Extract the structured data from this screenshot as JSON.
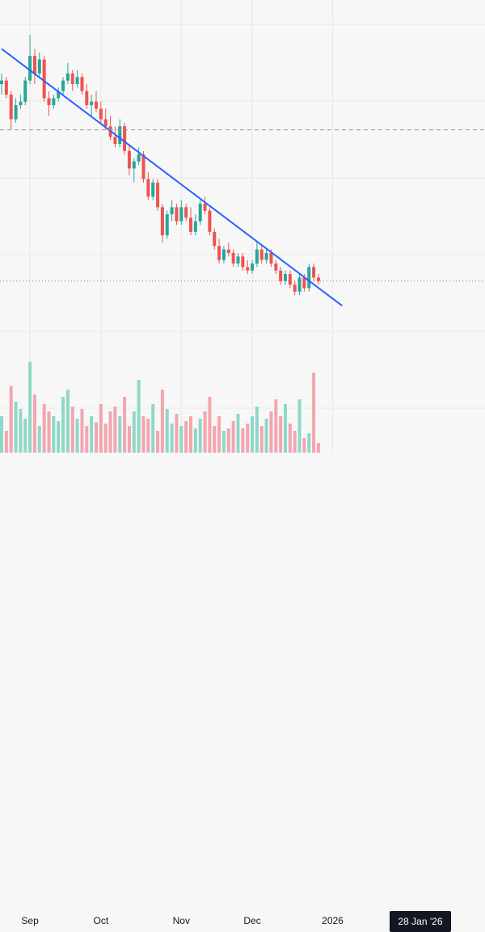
{
  "chart_data": {
    "type": "candlestick",
    "title": "",
    "xlabel": "",
    "ylabel": "",
    "x_ticks": [
      "Sep",
      "Oct",
      "Nov",
      "Dec",
      "2026"
    ],
    "crosshair_date_label": "28 Jan '26",
    "grid": true,
    "series": [
      {
        "name": "",
        "type": "candlestick",
        "ohlc": [
          [
            0.83,
            0.86,
            0.8,
            0.84
          ],
          [
            0.84,
            0.85,
            0.79,
            0.8
          ],
          [
            0.8,
            0.81,
            0.7,
            0.73
          ],
          [
            0.73,
            0.79,
            0.72,
            0.77
          ],
          [
            0.77,
            0.8,
            0.76,
            0.78
          ],
          [
            0.78,
            0.85,
            0.77,
            0.84
          ],
          [
            0.84,
            0.97,
            0.83,
            0.91
          ],
          [
            0.91,
            0.93,
            0.83,
            0.86
          ],
          [
            0.86,
            0.92,
            0.85,
            0.9
          ],
          [
            0.9,
            0.91,
            0.78,
            0.79
          ],
          [
            0.79,
            0.81,
            0.74,
            0.77
          ],
          [
            0.77,
            0.8,
            0.76,
            0.79
          ],
          [
            0.79,
            0.82,
            0.78,
            0.81
          ],
          [
            0.81,
            0.85,
            0.8,
            0.84
          ],
          [
            0.84,
            0.89,
            0.83,
            0.86
          ],
          [
            0.86,
            0.87,
            0.81,
            0.83
          ],
          [
            0.83,
            0.87,
            0.82,
            0.85
          ],
          [
            0.85,
            0.86,
            0.8,
            0.81
          ],
          [
            0.81,
            0.83,
            0.76,
            0.77
          ],
          [
            0.77,
            0.8,
            0.74,
            0.78
          ],
          [
            0.78,
            0.81,
            0.75,
            0.76
          ],
          [
            0.76,
            0.78,
            0.72,
            0.73
          ],
          [
            0.73,
            0.76,
            0.7,
            0.71
          ],
          [
            0.71,
            0.74,
            0.67,
            0.68
          ],
          [
            0.68,
            0.71,
            0.65,
            0.66
          ],
          [
            0.66,
            0.73,
            0.65,
            0.71
          ],
          [
            0.71,
            0.72,
            0.63,
            0.64
          ],
          [
            0.64,
            0.66,
            0.57,
            0.59
          ],
          [
            0.59,
            0.62,
            0.55,
            0.61
          ],
          [
            0.61,
            0.65,
            0.6,
            0.63
          ],
          [
            0.63,
            0.64,
            0.55,
            0.56
          ],
          [
            0.56,
            0.58,
            0.5,
            0.51
          ],
          [
            0.51,
            0.56,
            0.5,
            0.55
          ],
          [
            0.55,
            0.56,
            0.47,
            0.48
          ],
          [
            0.48,
            0.49,
            0.38,
            0.4
          ],
          [
            0.4,
            0.47,
            0.39,
            0.46
          ],
          [
            0.46,
            0.5,
            0.44,
            0.48
          ],
          [
            0.48,
            0.49,
            0.43,
            0.44
          ],
          [
            0.44,
            0.5,
            0.43,
            0.48
          ],
          [
            0.48,
            0.49,
            0.44,
            0.45
          ],
          [
            0.45,
            0.48,
            0.4,
            0.41
          ],
          [
            0.41,
            0.46,
            0.4,
            0.44
          ],
          [
            0.44,
            0.5,
            0.43,
            0.49
          ],
          [
            0.49,
            0.51,
            0.46,
            0.47
          ],
          [
            0.47,
            0.48,
            0.4,
            0.41
          ],
          [
            0.41,
            0.42,
            0.36,
            0.37
          ],
          [
            0.37,
            0.39,
            0.32,
            0.33
          ],
          [
            0.33,
            0.37,
            0.32,
            0.36
          ],
          [
            0.36,
            0.38,
            0.34,
            0.35
          ],
          [
            0.35,
            0.36,
            0.31,
            0.32
          ],
          [
            0.32,
            0.35,
            0.31,
            0.34
          ],
          [
            0.34,
            0.35,
            0.3,
            0.31
          ],
          [
            0.31,
            0.33,
            0.29,
            0.3
          ],
          [
            0.3,
            0.33,
            0.29,
            0.32
          ],
          [
            0.32,
            0.38,
            0.31,
            0.36
          ],
          [
            0.36,
            0.37,
            0.32,
            0.33
          ],
          [
            0.33,
            0.36,
            0.32,
            0.35
          ],
          [
            0.35,
            0.36,
            0.31,
            0.32
          ],
          [
            0.32,
            0.33,
            0.29,
            0.3
          ],
          [
            0.3,
            0.31,
            0.26,
            0.27
          ],
          [
            0.27,
            0.3,
            0.26,
            0.29
          ],
          [
            0.29,
            0.3,
            0.25,
            0.26
          ],
          [
            0.26,
            0.27,
            0.23,
            0.24
          ],
          [
            0.24,
            0.29,
            0.23,
            0.28
          ],
          [
            0.28,
            0.29,
            0.24,
            0.25
          ],
          [
            0.25,
            0.32,
            0.24,
            0.31
          ],
          [
            0.31,
            0.32,
            0.27,
            0.28
          ],
          [
            0.28,
            0.29,
            0.26,
            0.27
          ]
        ]
      }
    ],
    "volumes": [
      0.3,
      0.18,
      0.55,
      0.42,
      0.36,
      0.28,
      0.75,
      0.48,
      0.22,
      0.4,
      0.34,
      0.3,
      0.26,
      0.46,
      0.52,
      0.38,
      0.28,
      0.36,
      0.22,
      0.3,
      0.25,
      0.4,
      0.24,
      0.34,
      0.38,
      0.3,
      0.46,
      0.22,
      0.34,
      0.6,
      0.3,
      0.28,
      0.4,
      0.18,
      0.52,
      0.36,
      0.24,
      0.32,
      0.22,
      0.26,
      0.3,
      0.2,
      0.28,
      0.34,
      0.46,
      0.22,
      0.3,
      0.18,
      0.2,
      0.26,
      0.32,
      0.2,
      0.24,
      0.3,
      0.38,
      0.22,
      0.28,
      0.34,
      0.44,
      0.3,
      0.4,
      0.24,
      0.18,
      0.44,
      0.12,
      0.16,
      0.66,
      0.08
    ],
    "trendline": {
      "from": [
        0,
        0.93
      ],
      "to": [
        72,
        0.2
      ]
    },
    "last_price": 0.27,
    "crosshair": {
      "index": 104,
      "price": 0.7
    },
    "ylim": [
      0.15,
      1.0
    ],
    "x_tick_index": [
      6,
      21,
      38,
      53,
      70
    ],
    "x_range": [
      0,
      120
    ],
    "colors": {
      "up": "#26a69a",
      "down": "#ef5350",
      "volume_up": "#8fd8c8",
      "volume_down": "#f4a5ae",
      "trendline": "#2962ff",
      "grid": "#e8e8ea",
      "last_price": "#ef5350",
      "crosshair": "#9598a1",
      "axis_text": "#131722",
      "label_bg": "#131722",
      "label_text": "#ffffff"
    }
  }
}
